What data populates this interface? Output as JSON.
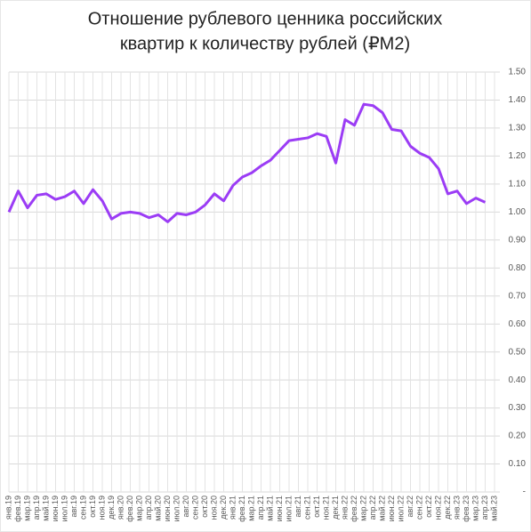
{
  "chart_data": {
    "type": "line",
    "title": [
      "Отношение рублевого ценника российских",
      "квартир к количеству рублей (₽M2)"
    ],
    "categories": [
      "янв.19",
      "фев.19",
      "мар.19",
      "апр.19",
      "май.19",
      "июн.19",
      "июл.19",
      "авг.19",
      "сен.19",
      "окт.19",
      "ноя.19",
      "дек.19",
      "янв.20",
      "фев.20",
      "мар.20",
      "апр.20",
      "май.20",
      "июн.20",
      "июл.20",
      "авг.20",
      "сен.20",
      "окт.20",
      "ноя.20",
      "дек.20",
      "янв.21",
      "фев.21",
      "мар.21",
      "апр.21",
      "май.21",
      "июн.21",
      "июл.21",
      "авг.21",
      "сен.21",
      "окт.21",
      "ноя.21",
      "дек.21",
      "янв.22",
      "фев.22",
      "мар.22",
      "апр.22",
      "май.22",
      "июн.22",
      "июл.22",
      "авг.22",
      "сен.22",
      "окт.22",
      "ноя.22",
      "дек.22",
      "янв.23",
      "фев.23",
      "мар.23",
      "апр.23",
      "май.23"
    ],
    "series": [
      {
        "color": "#9b3cf5",
        "values": [
          1.0,
          1.075,
          1.015,
          1.06,
          1.065,
          1.045,
          1.055,
          1.075,
          1.03,
          1.08,
          1.04,
          0.975,
          0.995,
          1.0,
          0.995,
          0.98,
          0.99,
          0.965,
          0.995,
          0.99,
          1.0,
          1.025,
          1.065,
          1.04,
          1.095,
          1.125,
          1.14,
          1.165,
          1.185,
          1.22,
          1.255,
          1.26,
          1.265,
          1.28,
          1.27,
          1.175,
          1.33,
          1.31,
          1.385,
          1.38,
          1.355,
          1.295,
          1.29,
          1.235,
          1.21,
          1.195,
          1.155,
          1.065,
          1.075,
          1.03,
          1.05,
          1.035,
          null
        ]
      }
    ],
    "ylim": [
      0,
      1.5
    ],
    "yticks": [
      {
        "value": 0,
        "label": "-"
      },
      {
        "value": 0.1,
        "label": "0.10"
      },
      {
        "value": 0.2,
        "label": "0.20"
      },
      {
        "value": 0.3,
        "label": "0.30"
      },
      {
        "value": 0.4,
        "label": "0.40"
      },
      {
        "value": 0.5,
        "label": "0.50"
      },
      {
        "value": 0.6,
        "label": "0.60"
      },
      {
        "value": 0.7,
        "label": "0.70"
      },
      {
        "value": 0.8,
        "label": "0.80"
      },
      {
        "value": 0.9,
        "label": "0.90"
      },
      {
        "value": 1.0,
        "label": "1.00"
      },
      {
        "value": 1.1,
        "label": "1.10"
      },
      {
        "value": 1.2,
        "label": "1.20"
      },
      {
        "value": 1.3,
        "label": "1.30"
      },
      {
        "value": 1.4,
        "label": "1.40"
      },
      {
        "value": 1.5,
        "label": "1.50"
      }
    ],
    "grid": true
  }
}
